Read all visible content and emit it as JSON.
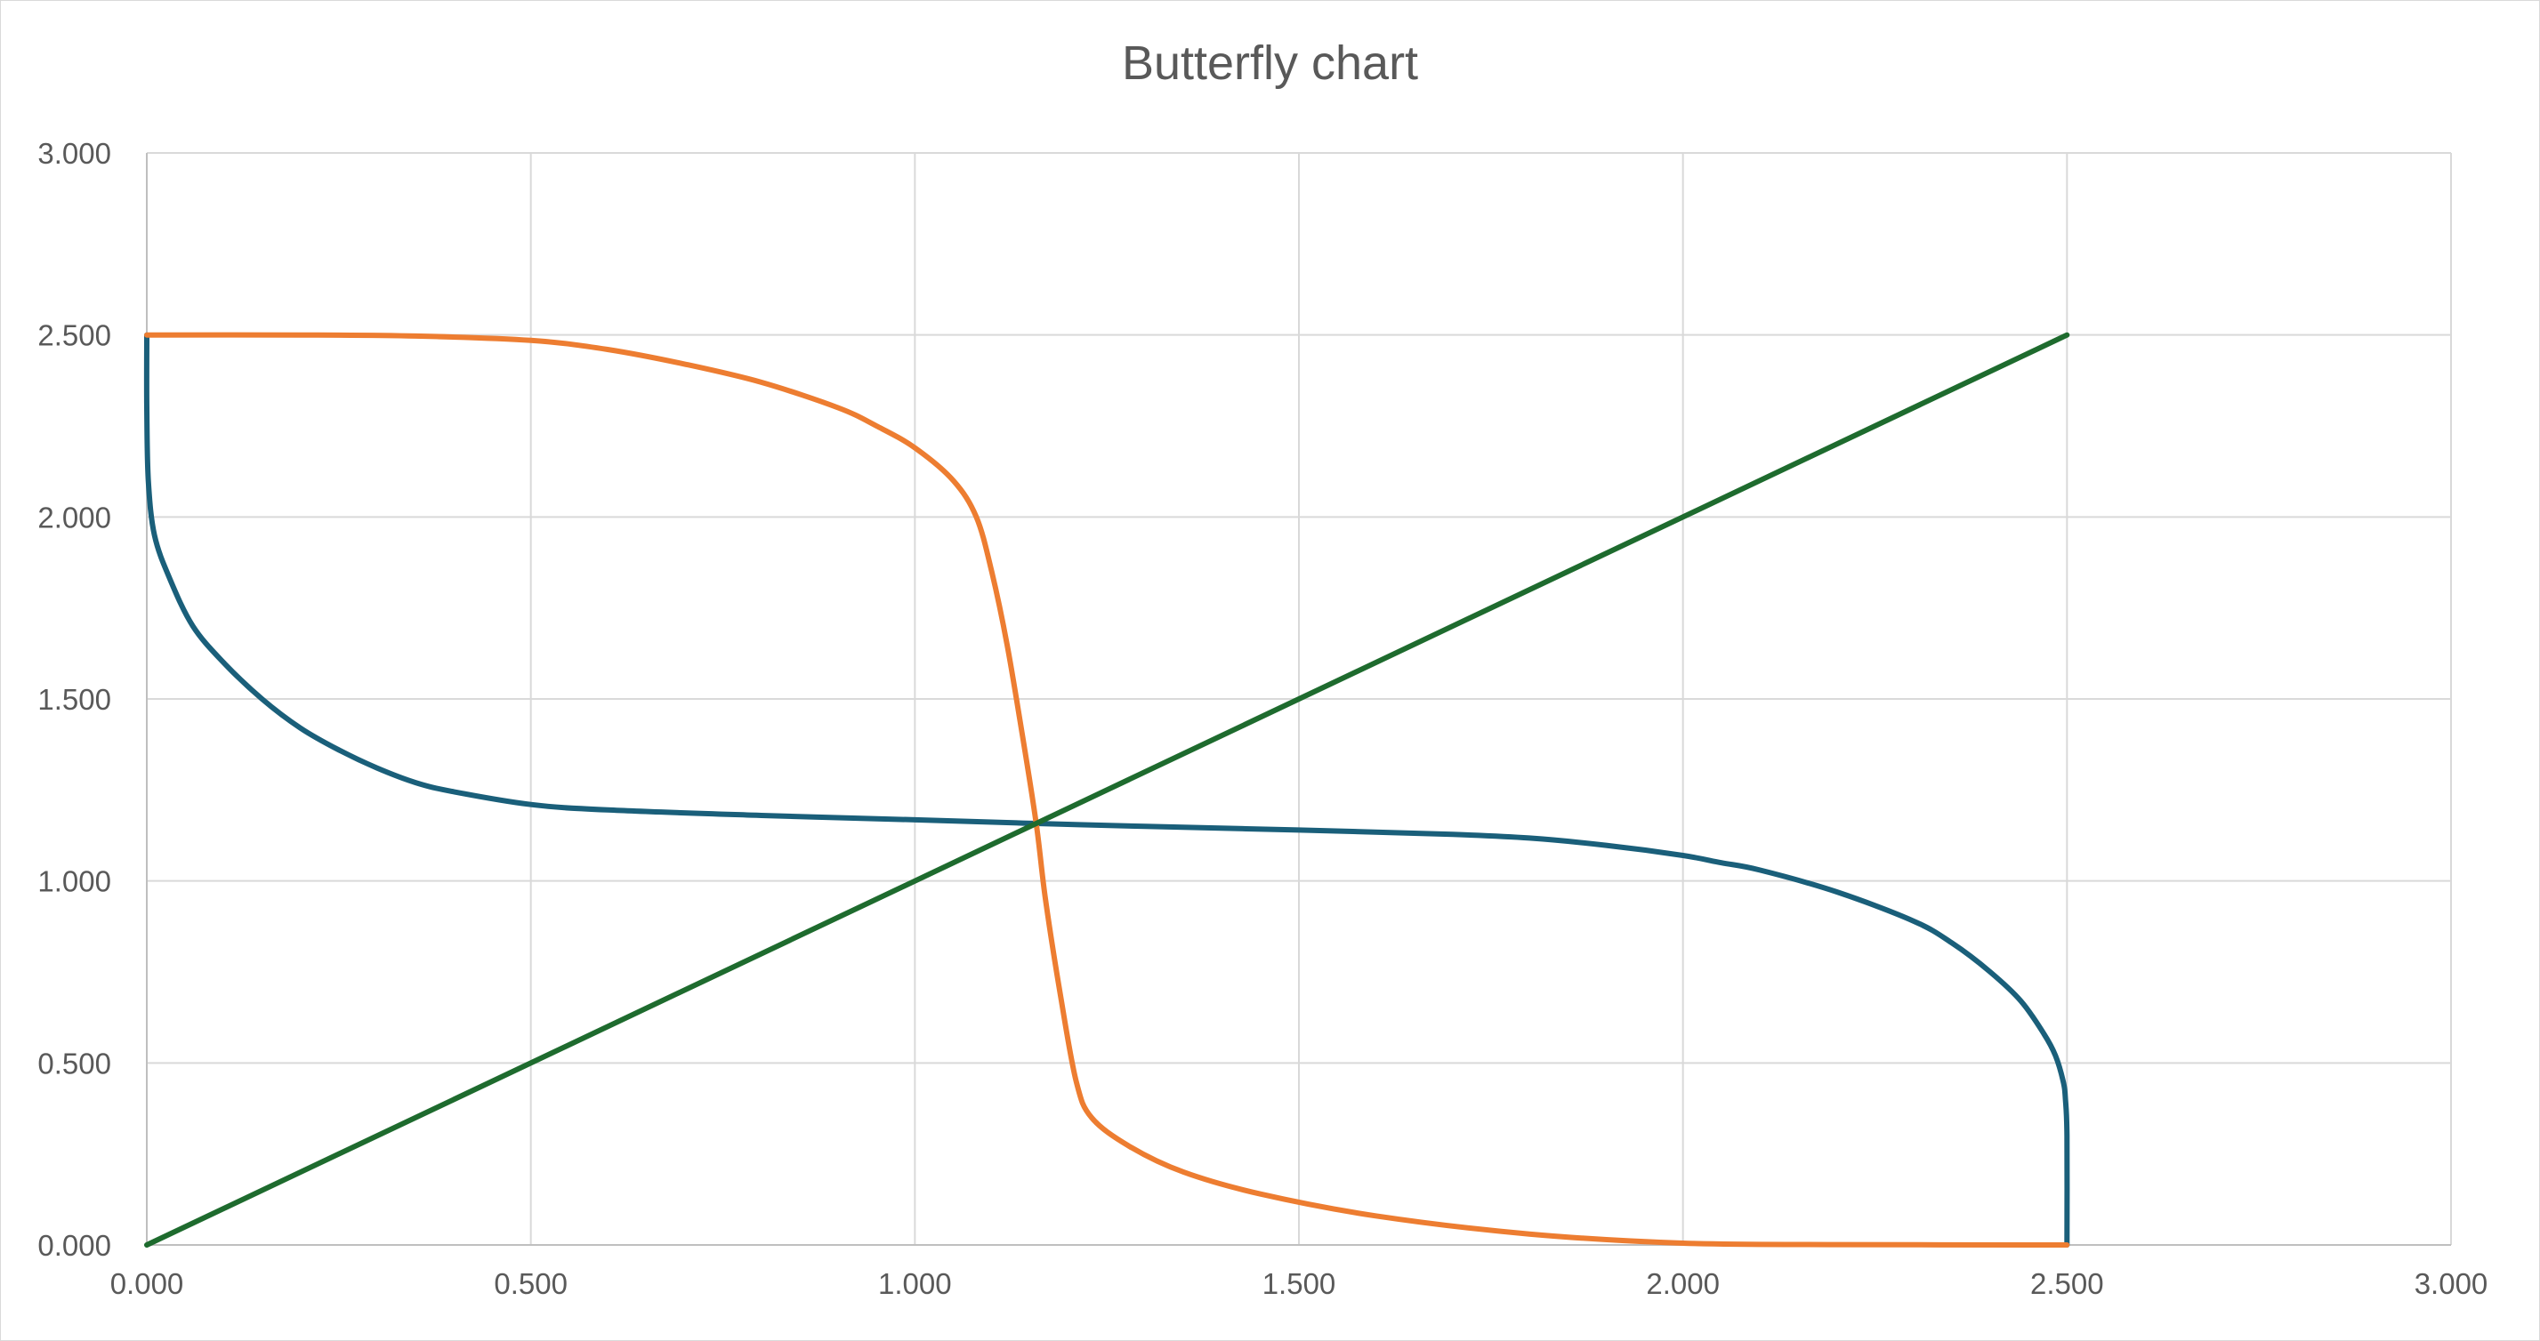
{
  "chart_data": {
    "type": "line",
    "title": "Butterfly chart",
    "xlabel": "",
    "ylabel": "",
    "xlim": [
      0,
      3
    ],
    "ylim": [
      0,
      3
    ],
    "x_ticks": [
      0,
      0.5,
      1,
      1.5,
      2,
      2.5,
      3
    ],
    "y_ticks": [
      0,
      0.5,
      1,
      1.5,
      2,
      2.5,
      3
    ],
    "x_tick_labels": [
      "0.000",
      "0.500",
      "1.000",
      "1.500",
      "2.000",
      "2.500",
      "3.000"
    ],
    "y_tick_labels": [
      "0.000",
      "0.500",
      "1.000",
      "1.500",
      "2.000",
      "2.500",
      "3.000"
    ],
    "grid": true,
    "legend": "none",
    "series": [
      {
        "color": "#1a5f7a",
        "points": [
          [
            0,
            2.5
          ],
          [
            0,
            2.3
          ],
          [
            0.002,
            2.1
          ],
          [
            0.01,
            1.95
          ],
          [
            0.03,
            1.83
          ],
          [
            0.06,
            1.7
          ],
          [
            0.1,
            1.6
          ],
          [
            0.15,
            1.5
          ],
          [
            0.2,
            1.42
          ],
          [
            0.25,
            1.36
          ],
          [
            0.3,
            1.31
          ],
          [
            0.35,
            1.27
          ],
          [
            0.4,
            1.245
          ],
          [
            0.5,
            1.21
          ],
          [
            0.6,
            1.195
          ],
          [
            0.8,
            1.18
          ],
          [
            1.0,
            1.168
          ],
          [
            1.158,
            1.158
          ],
          [
            1.3,
            1.15
          ],
          [
            1.5,
            1.14
          ],
          [
            1.7,
            1.128
          ],
          [
            1.8,
            1.118
          ],
          [
            1.9,
            1.098
          ],
          [
            2.0,
            1.07
          ],
          [
            2.05,
            1.05
          ],
          [
            2.1,
            1.03
          ],
          [
            2.2,
            0.97
          ],
          [
            2.3,
            0.89
          ],
          [
            2.35,
            0.83
          ],
          [
            2.4,
            0.75
          ],
          [
            2.44,
            0.67
          ],
          [
            2.47,
            0.58
          ],
          [
            2.485,
            0.52
          ],
          [
            2.495,
            0.45
          ],
          [
            2.498,
            0.4
          ],
          [
            2.5,
            0.3
          ],
          [
            2.5,
            0
          ]
        ]
      },
      {
        "color": "#ed7d31",
        "points": [
          [
            0,
            2.5
          ],
          [
            0.2,
            2.5
          ],
          [
            0.35,
            2.497
          ],
          [
            0.5,
            2.485
          ],
          [
            0.6,
            2.46
          ],
          [
            0.7,
            2.42
          ],
          [
            0.8,
            2.37
          ],
          [
            0.9,
            2.3
          ],
          [
            0.95,
            2.25
          ],
          [
            1.0,
            2.19
          ],
          [
            1.05,
            2.1
          ],
          [
            1.08,
            2.0
          ],
          [
            1.1,
            1.85
          ],
          [
            1.12,
            1.65
          ],
          [
            1.14,
            1.4
          ],
          [
            1.158,
            1.158
          ],
          [
            1.17,
            0.95
          ],
          [
            1.19,
            0.68
          ],
          [
            1.21,
            0.45
          ],
          [
            1.23,
            0.35
          ],
          [
            1.28,
            0.27
          ],
          [
            1.35,
            0.2
          ],
          [
            1.45,
            0.14
          ],
          [
            1.6,
            0.08
          ],
          [
            1.8,
            0.03
          ],
          [
            2.0,
            0.005
          ],
          [
            2.2,
            0.001
          ],
          [
            2.5,
            0
          ]
        ]
      },
      {
        "color": "#1e6b2e",
        "points": [
          [
            0,
            0
          ],
          [
            2.5,
            2.5
          ]
        ]
      }
    ]
  }
}
